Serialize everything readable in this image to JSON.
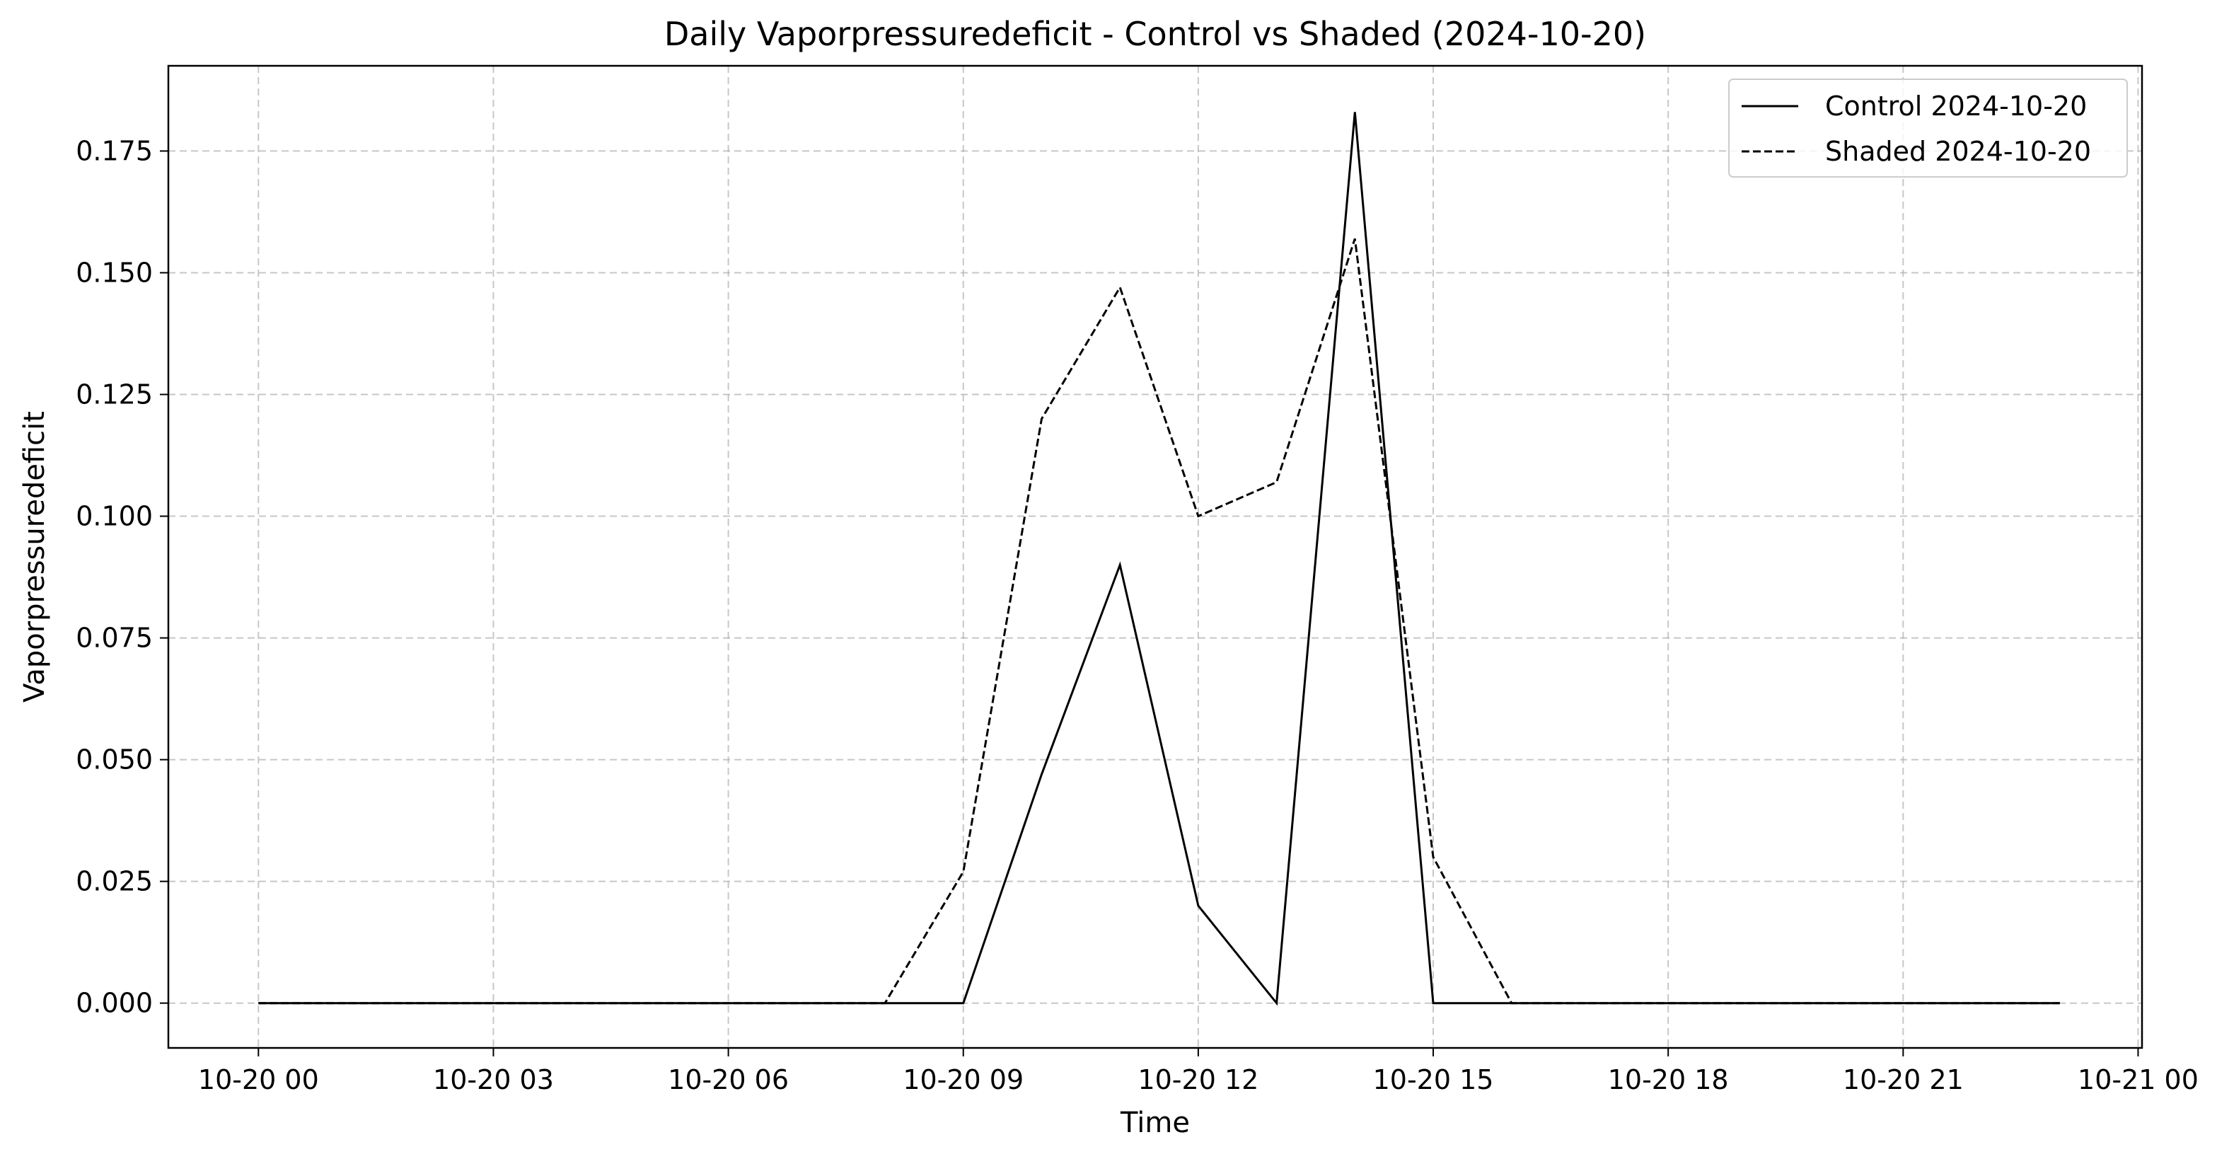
{
  "chart_data": {
    "type": "line",
    "title": "Daily Vaporpressuredeficit - Control vs Shaded (2024-10-20)",
    "xlabel": "Time",
    "ylabel": "Vaporpressuredeficit",
    "x_tick_labels": [
      "10-20 00",
      "10-20 03",
      "10-20 06",
      "10-20 09",
      "10-20 12",
      "10-20 15",
      "10-20 18",
      "10-20 21",
      "10-21 00"
    ],
    "y_tick_labels": [
      "0.000",
      "0.025",
      "0.050",
      "0.075",
      "0.100",
      "0.125",
      "0.150",
      "0.175"
    ],
    "x_unit": "hour of 2024-10-20",
    "xlim": [
      -1.15,
      24.05
    ],
    "ylim": [
      -0.0092,
      0.1925
    ],
    "grid": true,
    "legend_position": "upper right",
    "x": [
      0,
      1,
      2,
      3,
      4,
      5,
      6,
      7,
      8,
      9,
      10,
      11,
      12,
      13,
      14,
      15,
      16,
      17,
      18,
      19,
      20,
      21,
      22,
      23
    ],
    "series": [
      {
        "name": "Control 2024-10-20",
        "style": "solid",
        "color": "#000000",
        "values": [
          0,
          0,
          0,
          0,
          0,
          0,
          0,
          0,
          0,
          0,
          0.047,
          0.09,
          0.02,
          0.0,
          0.183,
          0,
          0,
          0,
          0,
          0,
          0,
          0,
          0,
          0
        ]
      },
      {
        "name": "Shaded 2024-10-20",
        "style": "dashed",
        "color": "#000000",
        "values": [
          0,
          0,
          0,
          0,
          0,
          0,
          0,
          0,
          0,
          0.027,
          0.12,
          0.147,
          0.1,
          0.107,
          0.157,
          0.03,
          0,
          0,
          0,
          0,
          0,
          0,
          0,
          0
        ]
      }
    ]
  }
}
